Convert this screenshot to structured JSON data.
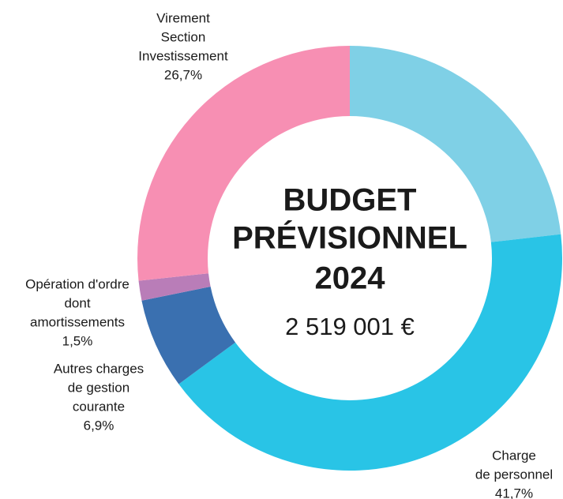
{
  "chart_data": {
    "type": "donut",
    "title": [
      "BUDGET",
      "PRÉVISIONNEL",
      "2024"
    ],
    "subtitle": "2 519 001 €",
    "categories": [
      null,
      [
        "Charge",
        "de personnel"
      ],
      [
        "Autres charges",
        "de gestion",
        "courante"
      ],
      [
        "Opération d'ordre",
        "dont",
        "amortissements"
      ],
      [
        "Virement",
        "Section",
        "Investissement"
      ]
    ],
    "values": [
      23.2,
      41.7,
      6.9,
      1.5,
      26.7
    ],
    "value_labels": [
      null,
      "41,7%",
      "6,9%",
      "1,5%",
      "26,7%"
    ],
    "colors": [
      "#7fd0e6",
      "#29c4e6",
      "#3a70b0",
      "#b97db8",
      "#f78fb3"
    ]
  }
}
